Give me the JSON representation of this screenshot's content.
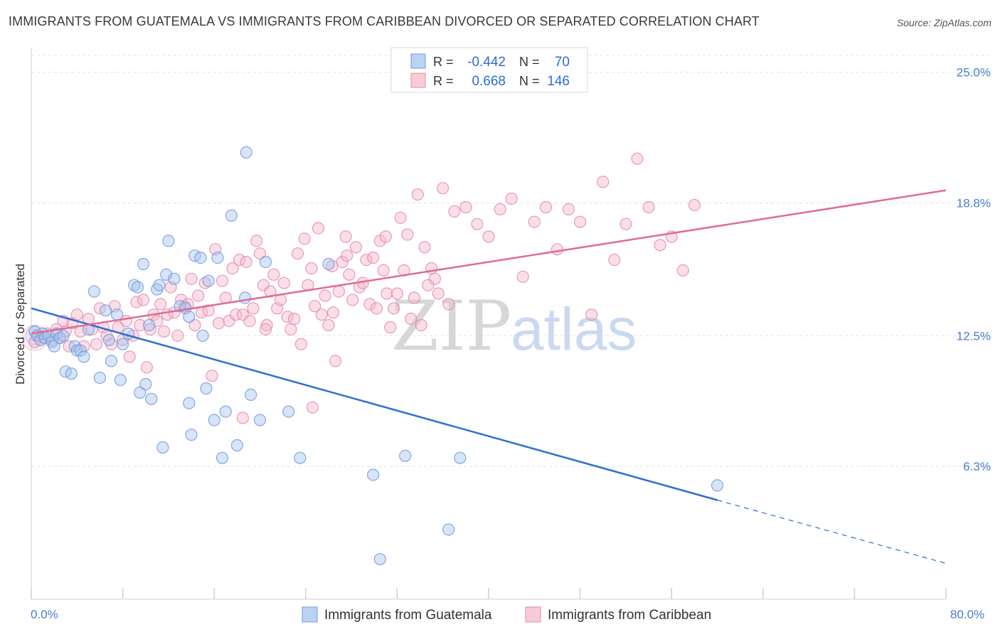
{
  "title": "IMMIGRANTS FROM GUATEMALA VS IMMIGRANTS FROM CARIBBEAN DIVORCED OR SEPARATED CORRELATION CHART",
  "source": "Source: ZipAtlas.com",
  "watermark": {
    "zip": "ZIP",
    "atlas": "atlas"
  },
  "legend_top": {
    "rows": [
      {
        "r_label": "R =",
        "r_value": "-0.442",
        "n_label": "N =",
        "n_value": "70",
        "color": "#a9c4ee",
        "stroke": "#6f9be0"
      },
      {
        "r_label": "R =",
        "r_value": "0.668",
        "n_label": "N =",
        "n_value": "146",
        "color": "#f5b9cb",
        "stroke": "#e88aa7"
      }
    ]
  },
  "chart_data": {
    "type": "scatter",
    "title": "IMMIGRANTS FROM GUATEMALA VS IMMIGRANTS FROM CARIBBEAN DIVORCED OR SEPARATED CORRELATION CHART",
    "xlabel": "",
    "ylabel": "Divorced or Separated",
    "xlim": [
      0,
      80
    ],
    "ylim": [
      0,
      25.9
    ],
    "x_tick_labels": [
      "0.0%",
      "80.0%"
    ],
    "y_ticks": [
      6.3,
      12.5,
      18.8,
      25.0
    ],
    "y_tick_labels": [
      "6.3%",
      "12.5%",
      "18.8%",
      "25.0%"
    ],
    "grid": true,
    "legend": "top-center and bottom",
    "series": [
      {
        "name": "Immigrants from Guatemala",
        "color": "#6f9be0",
        "fill": "#a9c4ee",
        "line_color": "#2f6fd0",
        "trend": {
          "x0": 0,
          "y0": 13.8,
          "x1": 60,
          "y1": 4.7,
          "x_dash_end": 80,
          "y_dash_end": 1.7
        },
        "points": [
          [
            0.3,
            12.7
          ],
          [
            0.5,
            12.5
          ],
          [
            0.8,
            12.3
          ],
          [
            1.0,
            12.6
          ],
          [
            1.2,
            12.4
          ],
          [
            1.5,
            12.5
          ],
          [
            1.8,
            12.2
          ],
          [
            2.0,
            12.0
          ],
          [
            2.2,
            12.6
          ],
          [
            2.5,
            12.4
          ],
          [
            3.0,
            10.8
          ],
          [
            3.5,
            10.7
          ],
          [
            3.8,
            12.0
          ],
          [
            4.0,
            11.8
          ],
          [
            4.3,
            11.8
          ],
          [
            4.6,
            11.5
          ],
          [
            5.0,
            12.8
          ],
          [
            5.5,
            14.6
          ],
          [
            6.0,
            10.5
          ],
          [
            6.5,
            13.7
          ],
          [
            7.0,
            11.3
          ],
          [
            7.5,
            13.5
          ],
          [
            7.8,
            10.4
          ],
          [
            8.0,
            12.1
          ],
          [
            8.5,
            12.6
          ],
          [
            9.0,
            14.9
          ],
          [
            9.3,
            14.8
          ],
          [
            9.5,
            9.8
          ],
          [
            9.8,
            15.9
          ],
          [
            10.0,
            10.2
          ],
          [
            10.3,
            13.0
          ],
          [
            10.5,
            9.5
          ],
          [
            11.0,
            14.7
          ],
          [
            11.2,
            14.9
          ],
          [
            11.5,
            7.2
          ],
          [
            11.8,
            15.4
          ],
          [
            12.0,
            17.0
          ],
          [
            12.5,
            15.2
          ],
          [
            13.0,
            13.9
          ],
          [
            13.5,
            13.8
          ],
          [
            13.8,
            9.3
          ],
          [
            14.0,
            7.8
          ],
          [
            14.3,
            16.3
          ],
          [
            14.8,
            16.2
          ],
          [
            15.0,
            12.5
          ],
          [
            15.3,
            10.0
          ],
          [
            15.5,
            15.1
          ],
          [
            16.0,
            8.5
          ],
          [
            16.3,
            16.2
          ],
          [
            16.7,
            6.7
          ],
          [
            17.0,
            8.9
          ],
          [
            17.5,
            18.2
          ],
          [
            18.0,
            7.3
          ],
          [
            18.7,
            14.3
          ],
          [
            18.8,
            21.2
          ],
          [
            19.2,
            9.7
          ],
          [
            20.0,
            8.5
          ],
          [
            20.5,
            16.0
          ],
          [
            22.5,
            8.9
          ],
          [
            23.5,
            6.7
          ],
          [
            26.0,
            15.9
          ],
          [
            29.9,
            5.9
          ],
          [
            30.5,
            1.9
          ],
          [
            32.7,
            6.8
          ],
          [
            36.5,
            3.3
          ],
          [
            37.5,
            6.7
          ],
          [
            60.0,
            5.4
          ],
          [
            13.8,
            13.4
          ],
          [
            6.8,
            12.3
          ],
          [
            2.8,
            12.5
          ]
        ]
      },
      {
        "name": "Immigrants from Caribbean",
        "color": "#e88aa7",
        "fill": "#f5b9cb",
        "line_color": "#e06b93",
        "trend": {
          "x0": 0,
          "y0": 12.6,
          "x1": 80,
          "y1": 19.4
        },
        "points": [
          [
            0.3,
            12.2
          ],
          [
            0.6,
            12.5
          ],
          [
            1.0,
            12.4
          ],
          [
            1.4,
            12.6
          ],
          [
            1.8,
            12.3
          ],
          [
            2.2,
            12.8
          ],
          [
            2.5,
            12.4
          ],
          [
            2.8,
            13.2
          ],
          [
            3.0,
            12.7
          ],
          [
            3.3,
            12.0
          ],
          [
            3.6,
            13.1
          ],
          [
            4.0,
            13.5
          ],
          [
            4.3,
            12.7
          ],
          [
            4.6,
            12.0
          ],
          [
            5.0,
            13.3
          ],
          [
            5.3,
            12.8
          ],
          [
            5.7,
            12.1
          ],
          [
            6.0,
            13.8
          ],
          [
            6.3,
            12.9
          ],
          [
            6.6,
            12.5
          ],
          [
            7.0,
            12.1
          ],
          [
            7.3,
            13.9
          ],
          [
            7.6,
            12.9
          ],
          [
            8.0,
            12.3
          ],
          [
            8.3,
            13.2
          ],
          [
            8.6,
            11.5
          ],
          [
            8.9,
            12.5
          ],
          [
            9.2,
            14.1
          ],
          [
            9.5,
            13.0
          ],
          [
            9.8,
            14.2
          ],
          [
            10.1,
            11.0
          ],
          [
            10.4,
            12.8
          ],
          [
            10.7,
            13.5
          ],
          [
            11.0,
            13.2
          ],
          [
            11.3,
            14.0
          ],
          [
            11.6,
            12.7
          ],
          [
            11.9,
            13.5
          ],
          [
            12.2,
            14.8
          ],
          [
            12.5,
            13.6
          ],
          [
            12.8,
            12.5
          ],
          [
            13.1,
            14.2
          ],
          [
            13.4,
            13.9
          ],
          [
            13.7,
            14.0
          ],
          [
            14.0,
            15.2
          ],
          [
            14.3,
            13.0
          ],
          [
            14.6,
            14.4
          ],
          [
            14.9,
            13.6
          ],
          [
            15.2,
            15.0
          ],
          [
            15.5,
            13.7
          ],
          [
            15.8,
            10.6
          ],
          [
            16.1,
            16.6
          ],
          [
            16.4,
            13.1
          ],
          [
            16.7,
            15.1
          ],
          [
            17.0,
            14.3
          ],
          [
            17.3,
            13.2
          ],
          [
            17.6,
            15.7
          ],
          [
            17.9,
            13.5
          ],
          [
            18.2,
            16.1
          ],
          [
            18.5,
            13.5
          ],
          [
            18.8,
            16.0
          ],
          [
            19.1,
            13.2
          ],
          [
            19.4,
            13.8
          ],
          [
            19.7,
            17.0
          ],
          [
            20.0,
            16.4
          ],
          [
            20.3,
            14.9
          ],
          [
            20.6,
            13.0
          ],
          [
            20.9,
            14.6
          ],
          [
            21.2,
            15.4
          ],
          [
            21.5,
            13.8
          ],
          [
            21.8,
            14.2
          ],
          [
            22.1,
            15.0
          ],
          [
            22.4,
            13.4
          ],
          [
            22.7,
            12.8
          ],
          [
            23.0,
            13.3
          ],
          [
            23.3,
            16.4
          ],
          [
            23.6,
            12.1
          ],
          [
            23.9,
            17.1
          ],
          [
            24.2,
            14.9
          ],
          [
            24.5,
            15.7
          ],
          [
            24.8,
            13.9
          ],
          [
            25.1,
            17.6
          ],
          [
            25.4,
            13.5
          ],
          [
            25.7,
            14.4
          ],
          [
            26.0,
            13.0
          ],
          [
            26.3,
            15.8
          ],
          [
            26.6,
            11.3
          ],
          [
            26.9,
            14.6
          ],
          [
            27.2,
            16.0
          ],
          [
            27.5,
            17.2
          ],
          [
            27.8,
            15.4
          ],
          [
            28.1,
            14.2
          ],
          [
            28.4,
            16.7
          ],
          [
            28.7,
            14.8
          ],
          [
            29.0,
            15.0
          ],
          [
            29.3,
            16.1
          ],
          [
            29.6,
            14.0
          ],
          [
            29.9,
            16.2
          ],
          [
            30.2,
            13.8
          ],
          [
            30.5,
            17.0
          ],
          [
            30.8,
            15.6
          ],
          [
            31.1,
            14.5
          ],
          [
            31.4,
            12.9
          ],
          [
            31.7,
            13.8
          ],
          [
            32.0,
            14.5
          ],
          [
            32.3,
            18.1
          ],
          [
            32.6,
            15.6
          ],
          [
            32.9,
            17.3
          ],
          [
            33.2,
            13.3
          ],
          [
            33.5,
            14.3
          ],
          [
            33.8,
            19.2
          ],
          [
            34.1,
            13.0
          ],
          [
            34.4,
            16.7
          ],
          [
            34.7,
            14.9
          ],
          [
            35.0,
            15.7
          ],
          [
            35.3,
            15.2
          ],
          [
            35.6,
            14.5
          ],
          [
            36.0,
            19.5
          ],
          [
            36.5,
            14.0
          ],
          [
            37.0,
            18.4
          ],
          [
            38.0,
            18.6
          ],
          [
            39.0,
            17.8
          ],
          [
            40.0,
            17.2
          ],
          [
            41.0,
            18.5
          ],
          [
            42.0,
            19.0
          ],
          [
            43.0,
            15.3
          ],
          [
            44.0,
            17.9
          ],
          [
            45.0,
            18.6
          ],
          [
            46.0,
            16.6
          ],
          [
            47.0,
            18.5
          ],
          [
            48.0,
            17.9
          ],
          [
            49.0,
            13.5
          ],
          [
            50.0,
            19.8
          ],
          [
            51.0,
            16.1
          ],
          [
            52.0,
            17.8
          ],
          [
            53.0,
            20.9
          ],
          [
            54.0,
            18.6
          ],
          [
            55.0,
            16.8
          ],
          [
            56.0,
            17.2
          ],
          [
            57.0,
            15.6
          ],
          [
            58.0,
            18.7
          ],
          [
            24.6,
            9.1
          ],
          [
            18.5,
            8.6
          ],
          [
            20.5,
            12.8
          ],
          [
            27.6,
            16.3
          ],
          [
            31.0,
            17.2
          ],
          [
            26.4,
            13.6
          ]
        ]
      }
    ]
  },
  "bottom_legend": [
    {
      "label": "Immigrants from Guatemala"
    },
    {
      "label": "Immigrants from Caribbean"
    }
  ]
}
